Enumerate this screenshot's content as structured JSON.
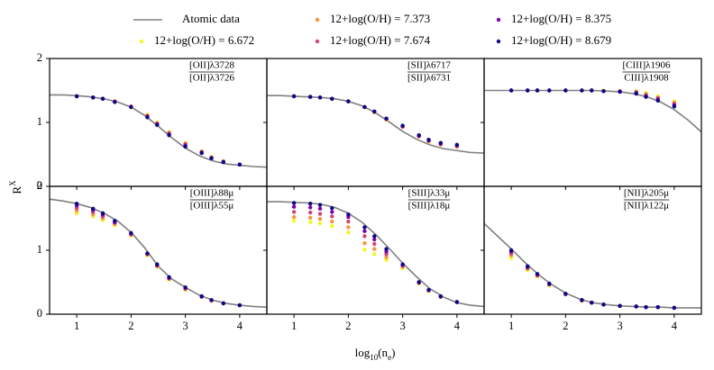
{
  "chart_data": {
    "type": "scatter",
    "xlabel": [
      "log",
      "10",
      "(n",
      "e",
      ")"
    ],
    "ylabel": [
      "R",
      "X"
    ],
    "xlim": [
      0.5,
      4.5
    ],
    "xticks": [
      1,
      2,
      3,
      4
    ],
    "ylim": [
      0,
      2
    ],
    "yticks": [
      0,
      1,
      2
    ],
    "x": [
      1,
      1.3,
      1.48,
      1.7,
      2,
      2.3,
      2.48,
      2.7,
      3,
      3.3,
      3.48,
      3.7,
      4
    ],
    "line_name": "Atomic data",
    "line_color": "#808080",
    "line_x": [
      0.5,
      0.75,
      1,
      1.25,
      1.5,
      1.75,
      2,
      2.25,
      2.5,
      2.75,
      3,
      3.25,
      3.5,
      3.75,
      4,
      4.25,
      4.5
    ],
    "series": [
      {
        "name": "12+log(O/H) = 6.672",
        "color": "#f0f921"
      },
      {
        "name": "12+log(O/H) = 7.373",
        "color": "#f89540"
      },
      {
        "name": "12+log(O/H) = 7.674",
        "color": "#cc4778"
      },
      {
        "name": "12+log(O/H) = 8.375",
        "color": "#7e03a8"
      },
      {
        "name": "12+log(O/H) = 8.679",
        "color": "#0d0887"
      }
    ],
    "panels": [
      {
        "title": [
          "[OII]λ3728",
          "[OII]λ3726"
        ],
        "line_values": [
          1.43,
          1.43,
          1.42,
          1.4,
          1.37,
          1.32,
          1.24,
          1.11,
          0.94,
          0.76,
          0.6,
          0.48,
          0.4,
          0.35,
          0.33,
          0.31,
          0.3
        ],
        "series": [
          {
            "values": [
              1.41,
              1.39,
              1.37,
              1.33,
              1.25,
              1.12,
              1.0,
              0.85,
              0.68,
              0.55,
              0.46,
              0.39,
              0.34
            ]
          },
          {
            "values": [
              1.41,
              1.39,
              1.37,
              1.33,
              1.25,
              1.11,
              0.99,
              0.84,
              0.67,
              0.54,
              0.45,
              0.39,
              0.34
            ]
          },
          {
            "values": [
              1.41,
              1.39,
              1.37,
              1.33,
              1.25,
              1.1,
              0.98,
              0.83,
              0.66,
              0.54,
              0.45,
              0.39,
              0.34
            ]
          },
          {
            "values": [
              1.41,
              1.39,
              1.37,
              1.32,
              1.24,
              1.09,
              0.97,
              0.81,
              0.64,
              0.53,
              0.44,
              0.38,
              0.34
            ]
          },
          {
            "values": [
              1.41,
              1.39,
              1.37,
              1.32,
              1.24,
              1.08,
              0.96,
              0.8,
              0.62,
              0.52,
              0.44,
              0.38,
              0.34
            ]
          }
        ]
      },
      {
        "title": [
          "[SII]λ6717",
          "[SII]λ6731"
        ],
        "line_values": [
          1.42,
          1.42,
          1.41,
          1.4,
          1.39,
          1.37,
          1.33,
          1.26,
          1.15,
          1.01,
          0.86,
          0.74,
          0.65,
          0.59,
          0.56,
          0.53,
          0.52
        ],
        "series": [
          {
            "values": [
              1.41,
              1.4,
              1.39,
              1.37,
              1.33,
              1.24,
              1.16,
              1.04,
              0.93,
              0.78,
              0.7,
              0.65,
              0.62
            ]
          },
          {
            "values": [
              1.41,
              1.4,
              1.39,
              1.37,
              1.33,
              1.24,
              1.16,
              1.05,
              0.93,
              0.78,
              0.71,
              0.66,
              0.62
            ]
          },
          {
            "values": [
              1.41,
              1.4,
              1.39,
              1.37,
              1.33,
              1.24,
              1.17,
              1.05,
              0.94,
              0.79,
              0.71,
              0.66,
              0.63
            ]
          },
          {
            "values": [
              1.41,
              1.4,
              1.39,
              1.37,
              1.33,
              1.24,
              1.17,
              1.06,
              0.94,
              0.79,
              0.72,
              0.67,
              0.64
            ]
          },
          {
            "values": [
              1.41,
              1.4,
              1.39,
              1.37,
              1.33,
              1.24,
              1.17,
              1.06,
              0.95,
              0.8,
              0.73,
              0.68,
              0.65
            ]
          }
        ]
      },
      {
        "title": [
          "[CIII]λ1906",
          "CIII]λ1908"
        ],
        "line_values": [
          1.5,
          1.5,
          1.5,
          1.5,
          1.5,
          1.5,
          1.5,
          1.5,
          1.5,
          1.49,
          1.48,
          1.45,
          1.4,
          1.32,
          1.2,
          1.04,
          0.85
        ],
        "series": [
          {
            "values": [
              1.5,
              1.5,
              1.5,
              1.5,
              1.5,
              1.5,
              1.5,
              1.5,
              1.49,
              1.49,
              1.46,
              1.41,
              1.33
            ]
          },
          {
            "values": [
              1.5,
              1.5,
              1.5,
              1.5,
              1.5,
              1.5,
              1.5,
              1.49,
              1.49,
              1.48,
              1.44,
              1.39,
              1.31
            ]
          },
          {
            "values": [
              1.5,
              1.5,
              1.5,
              1.5,
              1.5,
              1.5,
              1.5,
              1.49,
              1.49,
              1.47,
              1.43,
              1.38,
              1.29
            ]
          },
          {
            "values": [
              1.5,
              1.5,
              1.5,
              1.5,
              1.5,
              1.5,
              1.5,
              1.49,
              1.48,
              1.46,
              1.41,
              1.36,
              1.27
            ]
          },
          {
            "values": [
              1.5,
              1.5,
              1.5,
              1.5,
              1.5,
              1.5,
              1.5,
              1.49,
              1.48,
              1.45,
              1.4,
              1.34,
              1.25
            ]
          }
        ]
      },
      {
        "title": [
          "[OIII]λ88μ",
          "[OIII]λ55μ"
        ],
        "line_values": [
          1.8,
          1.77,
          1.73,
          1.67,
          1.58,
          1.46,
          1.28,
          1.04,
          0.75,
          0.55,
          0.42,
          0.3,
          0.22,
          0.17,
          0.14,
          0.12,
          0.11
        ],
        "series": [
          {
            "values": [
              1.58,
              1.53,
              1.47,
              1.39,
              1.23,
              0.92,
              0.74,
              0.54,
              0.38,
              0.27,
              0.21,
              0.17,
              0.14
            ]
          },
          {
            "values": [
              1.62,
              1.56,
              1.5,
              1.41,
              1.24,
              0.93,
              0.75,
              0.55,
              0.39,
              0.27,
              0.21,
              0.17,
              0.14
            ]
          },
          {
            "values": [
              1.66,
              1.6,
              1.53,
              1.43,
              1.25,
              0.94,
              0.76,
              0.56,
              0.4,
              0.27,
              0.22,
              0.17,
              0.14
            ]
          },
          {
            "values": [
              1.7,
              1.63,
              1.56,
              1.44,
              1.26,
              0.95,
              0.77,
              0.57,
              0.41,
              0.28,
              0.22,
              0.17,
              0.14
            ]
          },
          {
            "values": [
              1.73,
              1.65,
              1.58,
              1.46,
              1.27,
              0.95,
              0.78,
              0.58,
              0.42,
              0.28,
              0.22,
              0.17,
              0.14
            ]
          }
        ]
      },
      {
        "title": [
          "[SIII]λ33μ",
          "[SIII]λ18μ"
        ],
        "line_values": [
          1.76,
          1.76,
          1.75,
          1.74,
          1.72,
          1.67,
          1.58,
          1.44,
          1.25,
          1.03,
          0.8,
          0.59,
          0.4,
          0.27,
          0.18,
          0.14,
          0.12
        ],
        "series": [
          {
            "values": [
              1.46,
              1.44,
              1.42,
              1.38,
              1.28,
              1.01,
              0.94,
              0.85,
              0.72,
              0.48,
              0.36,
              0.27,
              0.19
            ]
          },
          {
            "values": [
              1.52,
              1.51,
              1.49,
              1.45,
              1.36,
              1.11,
              1.02,
              0.89,
              0.74,
              0.49,
              0.37,
              0.27,
              0.19
            ]
          },
          {
            "values": [
              1.6,
              1.59,
              1.57,
              1.53,
              1.45,
              1.22,
              1.1,
              0.94,
              0.76,
              0.49,
              0.37,
              0.27,
              0.19
            ]
          },
          {
            "values": [
              1.68,
              1.67,
              1.65,
              1.6,
              1.52,
              1.3,
              1.17,
              0.98,
              0.77,
              0.5,
              0.38,
              0.28,
              0.19
            ]
          },
          {
            "values": [
              1.74,
              1.73,
              1.71,
              1.66,
              1.56,
              1.36,
              1.22,
              1.02,
              0.78,
              0.5,
              0.38,
              0.28,
              0.19
            ]
          }
        ]
      },
      {
        "title": [
          "[NII]λ205μ",
          "[NII]λ122μ"
        ],
        "line_values": [
          1.42,
          1.22,
          1.02,
          0.81,
          0.62,
          0.46,
          0.33,
          0.24,
          0.18,
          0.15,
          0.13,
          0.12,
          0.11,
          0.11,
          0.1,
          0.1,
          0.1
        ],
        "series": [
          {
            "values": [
              0.88,
              0.69,
              0.59,
              0.45,
              0.31,
              0.21,
              0.18,
              0.15,
              0.13,
              0.12,
              0.11,
              0.11,
              0.1
            ]
          },
          {
            "values": [
              0.92,
              0.71,
              0.6,
              0.46,
              0.31,
              0.21,
              0.18,
              0.15,
              0.13,
              0.12,
              0.11,
              0.11,
              0.1
            ]
          },
          {
            "values": [
              0.95,
              0.72,
              0.61,
              0.47,
              0.31,
              0.22,
              0.18,
              0.15,
              0.13,
              0.12,
              0.11,
              0.11,
              0.1
            ]
          },
          {
            "values": [
              0.98,
              0.74,
              0.62,
              0.47,
              0.32,
              0.22,
              0.18,
              0.15,
              0.13,
              0.12,
              0.11,
              0.11,
              0.1
            ]
          },
          {
            "values": [
              1.0,
              0.75,
              0.63,
              0.48,
              0.32,
              0.22,
              0.18,
              0.15,
              0.13,
              0.12,
              0.11,
              0.11,
              0.1
            ]
          }
        ]
      }
    ]
  }
}
